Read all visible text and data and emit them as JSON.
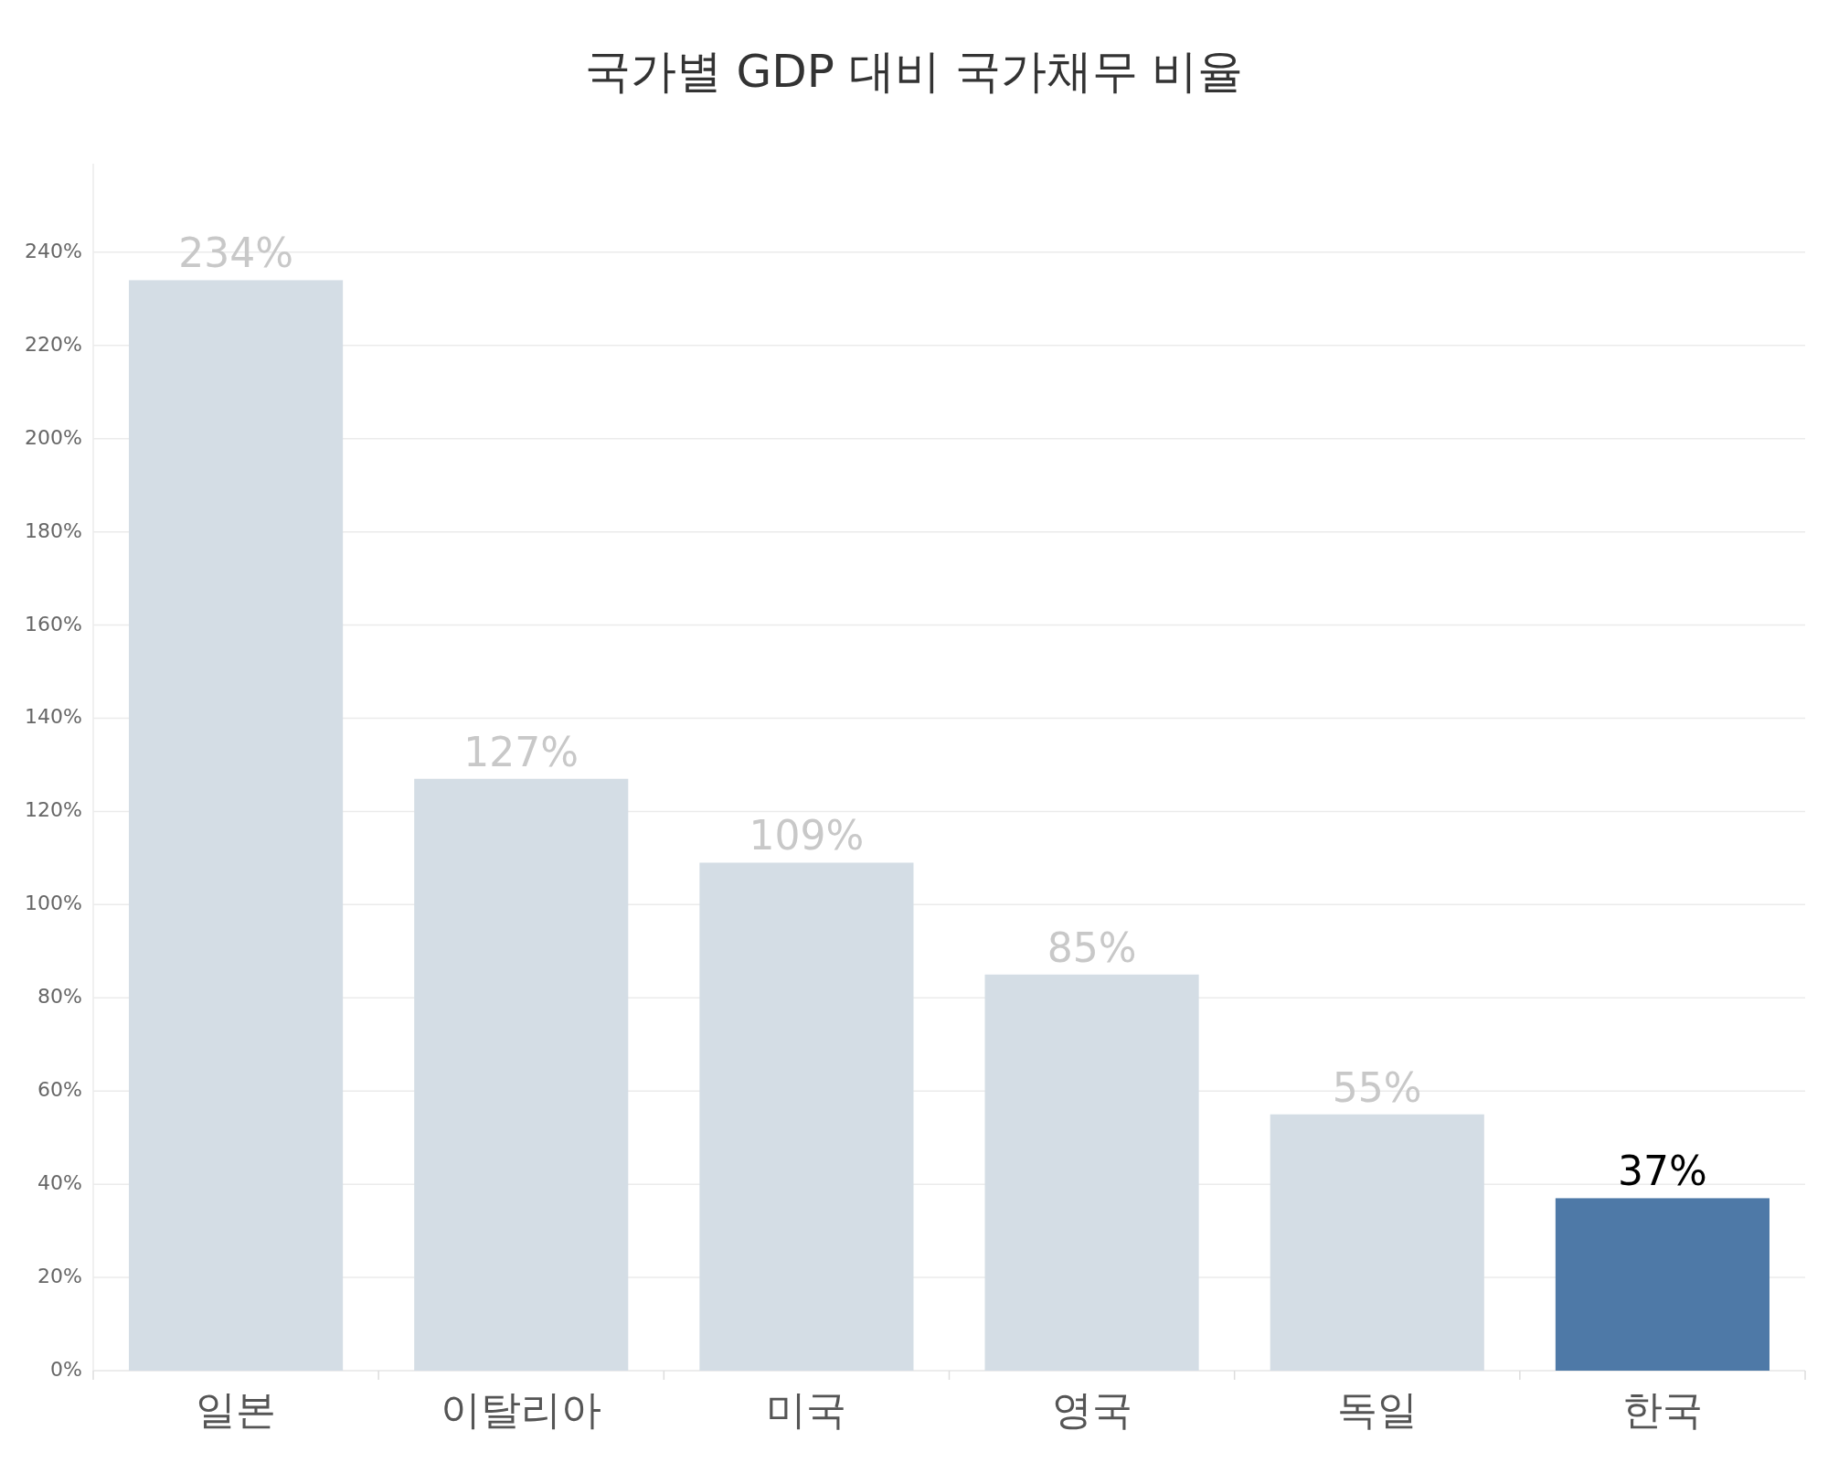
{
  "chart_data": {
    "type": "bar",
    "title": "국가별 GDP 대비 국가채무 비율",
    "categories": [
      "일본",
      "이탈리아",
      "미국",
      "영국",
      "독일",
      "한국"
    ],
    "values": [
      234,
      127,
      109,
      85,
      55,
      37
    ],
    "colors": [
      "#d4dde5",
      "#d4dde5",
      "#d4dde5",
      "#d4dde5",
      "#d4dde5",
      "#4e79a7"
    ],
    "value_labels": [
      "234%",
      "127%",
      "109%",
      "85%",
      "55%",
      "37%"
    ],
    "ylim": [
      0,
      259
    ],
    "yticks": [
      {
        "value": 0,
        "label": "0%"
      },
      {
        "value": 20,
        "label": "20%"
      },
      {
        "value": 40,
        "label": "40%"
      },
      {
        "value": 60,
        "label": "60%"
      },
      {
        "value": 80,
        "label": "80%"
      },
      {
        "value": 100,
        "label": "100%"
      },
      {
        "value": 120,
        "label": "120%"
      },
      {
        "value": 140,
        "label": "140%"
      },
      {
        "value": 160,
        "label": "160%"
      },
      {
        "value": 180,
        "label": "180%"
      },
      {
        "value": 200,
        "label": "200%"
      },
      {
        "value": 220,
        "label": "220%"
      },
      {
        "value": 240,
        "label": "240%"
      }
    ],
    "grid": "y"
  }
}
